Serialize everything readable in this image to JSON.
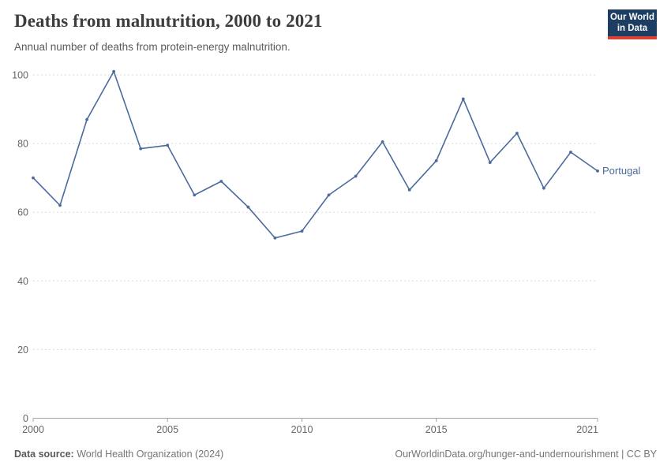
{
  "header": {
    "title": "Deaths from malnutrition, 2000 to 2021",
    "subtitle": "Annual number of deaths from protein-energy malnutrition.",
    "logo": {
      "line1": "Our World",
      "line2": "in Data",
      "bg_color": "#1d3d63",
      "accent_color": "#dc3f33"
    }
  },
  "chart_data": {
    "type": "line",
    "title": "Deaths from malnutrition, 2000 to 2021",
    "subtitle": "Annual number of deaths from protein-energy malnutrition.",
    "xlabel": "",
    "ylabel": "",
    "x": [
      2000,
      2001,
      2002,
      2003,
      2004,
      2005,
      2006,
      2007,
      2008,
      2009,
      2010,
      2011,
      2012,
      2013,
      2014,
      2015,
      2016,
      2017,
      2018,
      2019,
      2020,
      2021
    ],
    "series": [
      {
        "name": "Portugal",
        "color": "#4c6a9c",
        "values": [
          70,
          62,
          87,
          101,
          78.5,
          79.5,
          65,
          69,
          61.5,
          52.5,
          54.5,
          65,
          70.5,
          80.5,
          66.5,
          75,
          93,
          74.5,
          83,
          67,
          77.5,
          72
        ]
      }
    ],
    "x_ticks": [
      2000,
      2005,
      2010,
      2015,
      2021
    ],
    "y_ticks": [
      0,
      20,
      40,
      60,
      80,
      100
    ],
    "xlim": [
      2000,
      2021
    ],
    "ylim": [
      0,
      101
    ],
    "grid": "horizontal-dashed",
    "legend": "inline-end-label",
    "colors": {
      "gridline": "#dadada",
      "axis": "#a1a1a1",
      "tick_text": "#666666"
    }
  },
  "footer": {
    "source_label": "Data source:",
    "source_text": "World Health Organization (2024)",
    "credit_text": "OurWorldinData.org/hunger-and-undernourishment | CC BY"
  }
}
